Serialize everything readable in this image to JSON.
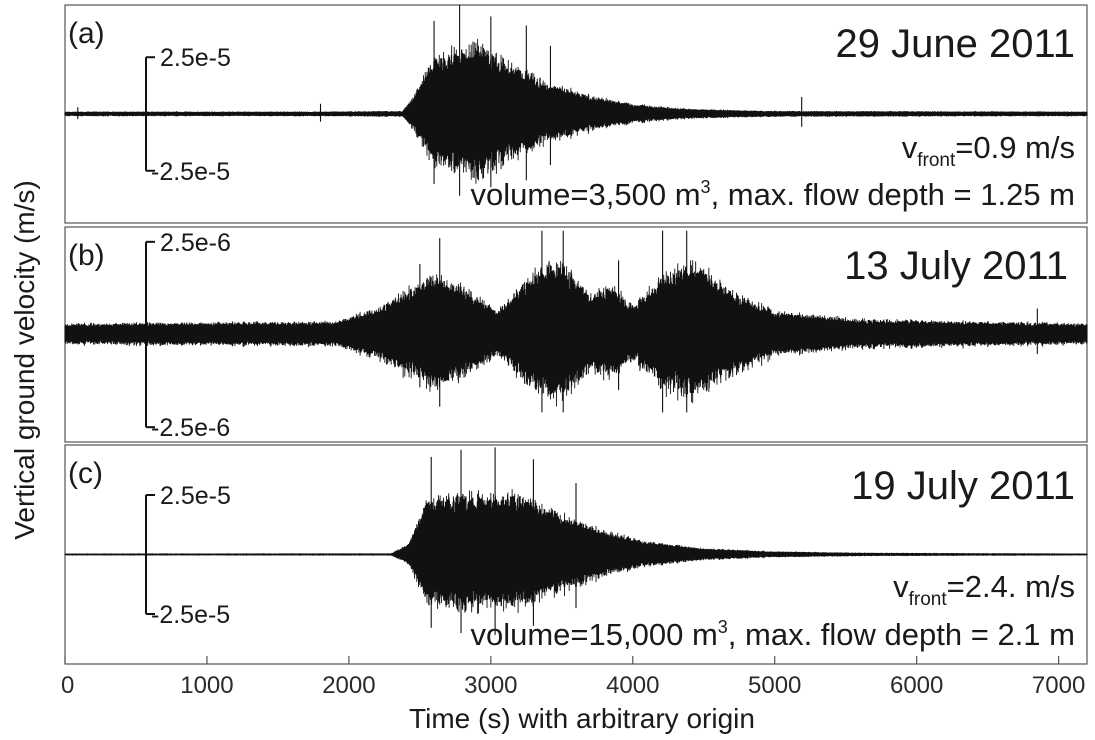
{
  "figure": {
    "ylabel": "Vertical ground velocity (m/s)",
    "xlabel": "Time (s) with arbitrary origin"
  },
  "chart_data": {
    "type": "line",
    "x_axis": {
      "label": "Time (s) with arbitrary origin",
      "range": [
        0,
        7200
      ],
      "ticks": [
        0,
        1000,
        2000,
        3000,
        4000,
        5000,
        6000,
        7000
      ],
      "tick_labels": [
        "0",
        "1000",
        "2000",
        "3000",
        "4000",
        "5000",
        "6000",
        "7000"
      ]
    },
    "y_axis": {
      "label": "Vertical ground velocity (m/s)"
    },
    "grid": false,
    "panels": [
      {
        "id": "a",
        "label": "(a)",
        "date": "29 June 2011",
        "scale": {
          "top_label": "2.5e-5",
          "bottom_label": "-2.5e-5",
          "value": 2.5e-05
        },
        "velocity": {
          "v": "v",
          "sub": "front",
          "rest": "=0.9 m/s"
        },
        "volume": {
          "pre": "volume=3,500 m",
          "sup": "3",
          "post": ", max. flow depth = 1.25 m"
        },
        "ylim": [
          -4.8e-05,
          4.8e-05
        ],
        "seed": 11,
        "noise": 6e-07,
        "envelope": [
          [
            0,
            9e-07
          ],
          [
            1800,
            9e-07
          ],
          [
            2380,
            1.2e-06
          ],
          [
            2450,
            8e-06
          ],
          [
            2600,
            2.8e-05
          ],
          [
            2900,
            3.4e-05
          ],
          [
            3150,
            2.5e-05
          ],
          [
            3400,
            1.5e-05
          ],
          [
            3700,
            9e-06
          ],
          [
            4000,
            4.5e-06
          ],
          [
            4400,
            2.2e-06
          ],
          [
            5000,
            1.2e-06
          ],
          [
            7200,
            9e-07
          ]
        ],
        "spikes": [
          [
            2600,
            4.1e-05
          ],
          [
            2780,
            4.8e-05
          ],
          [
            3000,
            4.3e-05
          ],
          [
            3250,
            3.9e-05
          ],
          [
            3420,
            3e-05
          ],
          [
            90,
            3e-06
          ],
          [
            1800,
            4.5e-06
          ],
          [
            5190,
            7.5e-06
          ]
        ]
      },
      {
        "id": "b",
        "label": "(b)",
        "date": "13 July 2011",
        "scale": {
          "top_label": "2.5e-6",
          "bottom_label": "-2.5e-6",
          "value": 2.5e-06
        },
        "ylim": [
          -2.9e-06,
          2.9e-06
        ],
        "seed": 23,
        "noise": 2.2e-07,
        "envelope": [
          [
            0,
            2.2e-07
          ],
          [
            1900,
            2.8e-07
          ],
          [
            2200,
            7e-07
          ],
          [
            2600,
            1.7e-06
          ],
          [
            2800,
            1.4e-06
          ],
          [
            3050,
            6e-07
          ],
          [
            3300,
            1.8e-06
          ],
          [
            3500,
            2.2e-06
          ],
          [
            3700,
            1.1e-06
          ],
          [
            3850,
            1.4e-06
          ],
          [
            4000,
            8e-07
          ],
          [
            4250,
            1.8e-06
          ],
          [
            4450,
            2.1e-06
          ],
          [
            4700,
            1.2e-06
          ],
          [
            5000,
            6e-07
          ],
          [
            5600,
            3.5e-07
          ],
          [
            7200,
            2.2e-07
          ]
        ],
        "spikes": [
          [
            2640,
            2.6e-06
          ],
          [
            3360,
            2.8e-06
          ],
          [
            3510,
            2.8e-06
          ],
          [
            4210,
            2.8e-06
          ],
          [
            4380,
            2.8e-06
          ],
          [
            3900,
            2e-06
          ],
          [
            2500,
            1.9e-06
          ],
          [
            6850,
            7e-07
          ]
        ]
      },
      {
        "id": "c",
        "label": "(c)",
        "date": "19 July 2011",
        "scale": {
          "top_label": "2.5e-5",
          "bottom_label": "-2.5e-5",
          "value": 2.5e-05
        },
        "velocity": {
          "v": "v",
          "sub": "front",
          "rest": "=2.4. m/s"
        },
        "volume": {
          "pre": "volume=15,000 m",
          "sup": "3",
          "post": ", max. flow depth = 2.1 m"
        },
        "ylim": [
          -4.6e-05,
          4.6e-05
        ],
        "seed": 37,
        "noise": 3e-07,
        "envelope": [
          [
            0,
            3e-07
          ],
          [
            2300,
            4e-07
          ],
          [
            2420,
            5e-06
          ],
          [
            2550,
            2.6e-05
          ],
          [
            2800,
            2.9e-05
          ],
          [
            3200,
            2.8e-05
          ],
          [
            3500,
            1.9e-05
          ],
          [
            3800,
            1.1e-05
          ],
          [
            4100,
            6e-06
          ],
          [
            4500,
            2.8e-06
          ],
          [
            5000,
            1.3e-06
          ],
          [
            5600,
            7e-07
          ],
          [
            7200,
            3e-07
          ]
        ],
        "spikes": [
          [
            2580,
            4.1e-05
          ],
          [
            2790,
            4.4e-05
          ],
          [
            3030,
            4.5e-05
          ],
          [
            3300,
            4e-05
          ],
          [
            3600,
            3e-05
          ]
        ]
      }
    ]
  }
}
